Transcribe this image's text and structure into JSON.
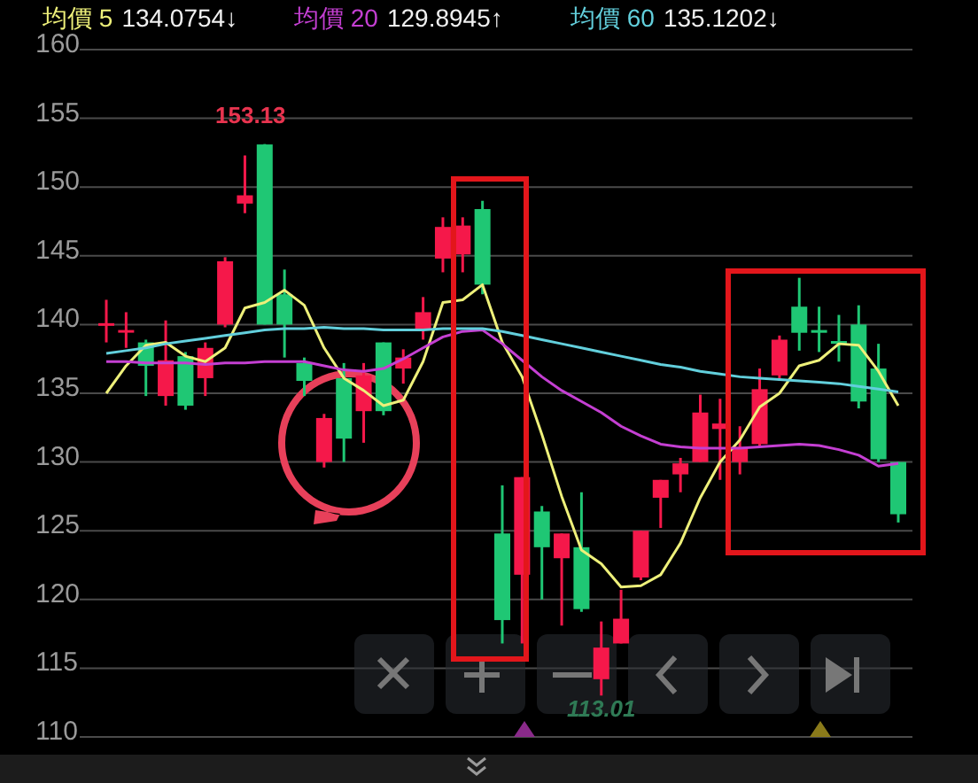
{
  "chart_data": {
    "type": "candlestick",
    "categories": [
      null,
      null,
      null,
      null,
      null,
      null,
      null,
      null,
      null,
      null,
      null,
      null,
      null,
      null,
      null,
      null,
      null,
      null,
      null,
      null,
      null,
      null,
      null,
      null,
      null,
      null,
      null,
      null,
      null,
      null,
      null,
      null,
      null,
      null,
      null,
      null,
      null,
      null,
      null,
      null,
      null
    ],
    "ohlc": [
      [
        140.0,
        141.8,
        138.7,
        140.1
      ],
      [
        139.5,
        140.9,
        138.3,
        139.6
      ],
      [
        138.7,
        138.9,
        134.8,
        137.0
      ],
      [
        134.8,
        140.3,
        134.1,
        137.4
      ],
      [
        137.7,
        138.0,
        133.8,
        134.1
      ],
      [
        136.1,
        138.7,
        134.8,
        138.3
      ],
      [
        140.0,
        144.9,
        139.8,
        144.6
      ],
      [
        148.8,
        152.3,
        148.1,
        149.4
      ],
      [
        153.1,
        153.13,
        140.0,
        140.0
      ],
      [
        142.2,
        144.0,
        137.6,
        140.0
      ],
      [
        137.2,
        137.6,
        134.8,
        135.9
      ],
      [
        130.0,
        133.5,
        129.6,
        133.2
      ],
      [
        136.1,
        137.2,
        130.0,
        131.7
      ],
      [
        133.7,
        137.2,
        131.4,
        136.3
      ],
      [
        138.7,
        138.7,
        133.4,
        133.7
      ],
      [
        136.8,
        138.2,
        135.7,
        137.6
      ],
      [
        139.6,
        142.0,
        138.9,
        140.9
      ],
      [
        144.8,
        147.8,
        143.8,
        147.1
      ],
      [
        145.1,
        147.8,
        143.8,
        147.2
      ],
      [
        148.4,
        149.0,
        142.2,
        142.9
      ],
      [
        124.8,
        128.3,
        116.8,
        118.5
      ],
      [
        121.8,
        128.9,
        116.8,
        128.9
      ],
      [
        126.4,
        126.8,
        120.0,
        123.8
      ],
      [
        123.0,
        124.8,
        118.1,
        124.8
      ],
      [
        123.8,
        127.8,
        119.1,
        119.3
      ],
      [
        114.2,
        118.4,
        113.01,
        116.5
      ],
      [
        116.8,
        120.7,
        116.8,
        118.6
      ],
      [
        121.6,
        125.0,
        121.4,
        125.0
      ],
      [
        127.4,
        128.7,
        125.2,
        128.7
      ],
      [
        129.1,
        130.3,
        127.8,
        129.9
      ],
      [
        130.0,
        134.9,
        130.0,
        133.6
      ],
      [
        132.4,
        134.6,
        128.7,
        132.8
      ],
      [
        130.0,
        132.6,
        129.1,
        131.1
      ],
      [
        131.3,
        136.8,
        131.1,
        135.3
      ],
      [
        136.3,
        139.2,
        135.9,
        138.9
      ],
      [
        141.3,
        143.4,
        138.1,
        139.4
      ],
      [
        139.6,
        141.3,
        138.0,
        139.4
      ],
      [
        138.8,
        140.7,
        137.3,
        138.6
      ],
      [
        140.0,
        141.4,
        133.9,
        134.4
      ],
      [
        136.8,
        138.6,
        130.0,
        130.2
      ],
      [
        130.0,
        130.0,
        125.6,
        126.2
      ]
    ],
    "colors": [
      "#f5184a",
      "#f5184a",
      "#1fc774",
      "#f5184a",
      "#1fc774",
      "#f5184a",
      "#f5184a",
      "#f5184a",
      "#1fc774",
      "#1fc774",
      "#1fc774",
      "#f5184a",
      "#1fc774",
      "#f5184a",
      "#1fc774",
      "#f5184a",
      "#f5184a",
      "#f5184a",
      "#f5184a",
      "#1fc774",
      "#1fc774",
      "#f5184a",
      "#1fc774",
      "#f5184a",
      "#1fc774",
      "#f5184a",
      "#f5184a",
      "#f5184a",
      "#f5184a",
      "#f5184a",
      "#f5184a",
      "#f5184a",
      "#f5184a",
      "#f5184a",
      "#f5184a",
      "#1fc774",
      "#1fc774",
      "#1fc774",
      "#1fc774",
      "#1fc774",
      "#1fc774"
    ],
    "series": [
      {
        "type": "line",
        "name": "均價 5",
        "color": "#eef07a",
        "values": [
          135.0,
          137.0,
          138.5,
          138.7,
          137.7,
          137.3,
          138.3,
          141.2,
          141.6,
          142.5,
          141.4,
          138.3,
          136.1,
          135.2,
          134.1,
          134.5,
          137.3,
          141.6,
          141.8,
          142.9,
          138.7,
          136.2,
          132.0,
          127.5,
          123.6,
          122.6,
          120.9,
          121.0,
          121.8,
          124.1,
          127.4,
          130.0,
          131.6,
          134.0,
          135.0,
          137.0,
          137.4,
          138.6,
          138.5,
          136.6,
          134.1
        ]
      },
      {
        "type": "line",
        "name": "均價 20",
        "color": "#c43fd2",
        "values": [
          137.3,
          137.3,
          137.2,
          137.2,
          137.2,
          137.1,
          137.2,
          137.2,
          137.3,
          137.3,
          137.3,
          137.0,
          136.7,
          136.6,
          136.8,
          137.5,
          138.3,
          139.1,
          139.5,
          139.6,
          138.6,
          137.4,
          136.2,
          135.2,
          134.4,
          133.6,
          132.6,
          131.9,
          131.3,
          131.1,
          131.0,
          131.0,
          131.0,
          131.1,
          131.2,
          131.3,
          131.2,
          130.9,
          130.5,
          129.7,
          129.9
        ]
      },
      {
        "type": "line",
        "name": "均價 60",
        "color": "#62cfdc",
        "values": [
          137.9,
          138.1,
          138.3,
          138.6,
          138.8,
          139.0,
          139.2,
          139.4,
          139.6,
          139.7,
          139.7,
          139.8,
          139.7,
          139.7,
          139.6,
          139.6,
          139.6,
          139.7,
          139.7,
          139.7,
          139.5,
          139.2,
          138.9,
          138.6,
          138.3,
          138.0,
          137.7,
          137.4,
          137.1,
          136.9,
          136.6,
          136.4,
          136.2,
          136.1,
          136.0,
          135.9,
          135.8,
          135.7,
          135.5,
          135.3,
          135.1
        ]
      }
    ],
    "annotations": [
      "134.0754↓",
      "129.8945↑",
      "135.1202↓",
      {
        "text": "153.13",
        "y": 153.13
      },
      {
        "text": "113.01",
        "y": 113.01
      }
    ],
    "ylim": [
      110,
      160
    ],
    "yticks": [
      110,
      115,
      120,
      125,
      130,
      135,
      140,
      145,
      150,
      155,
      160
    ],
    "grid": "y",
    "legend": "top",
    "tick_labels": "y"
  }
}
